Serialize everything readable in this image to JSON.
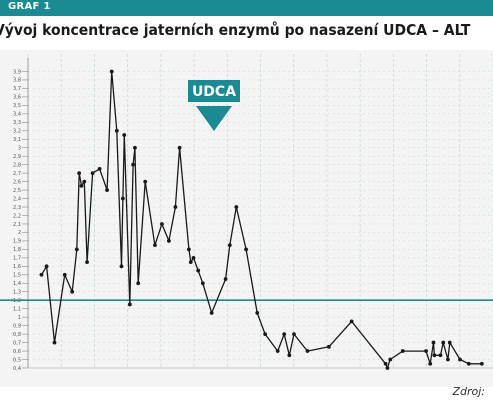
{
  "header": {
    "label": "GRAF 1"
  },
  "title": "Vývoj koncentrace jaterních enzymů po nasazení UDCA – ALT",
  "source": "Zdroj:",
  "colors": {
    "accent": "#1b8a93",
    "line": "#1a1a1a",
    "grid": "#c9d9d9",
    "plot_background": "#f4f4f4"
  },
  "chart_data": {
    "type": "line",
    "title": "Vývoj koncentrace jaterních enzymů po nasazení UDCA – ALT",
    "xlabel": "",
    "ylabel": "",
    "ylim": [
      0.4,
      4.0
    ],
    "xlim": [
      0,
      100
    ],
    "grid": true,
    "y_ticks": [
      "0,4",
      "0,5",
      "0,6",
      "0,7",
      "0,8",
      "0,9",
      "1",
      "1,1",
      "1,2",
      "1,3",
      "1,4",
      "1,5",
      "1,6",
      "1,7",
      "1,8",
      "1,9",
      "2",
      "2,1",
      "2,2",
      "2,3",
      "2,4",
      "2,5",
      "2,6",
      "2,7",
      "2,8",
      "2,9",
      "3",
      "3,1",
      "3,2",
      "3,3",
      "3,4",
      "3,5",
      "3,6",
      "3,7",
      "3,8",
      "3,9"
    ],
    "reference_line": {
      "y": 1.2
    },
    "annotation": {
      "label": "UDCA",
      "x": 40
    },
    "series": [
      {
        "x": [
          2.9,
          4.0,
          5.7,
          7.9,
          9.5,
          10.5,
          11.0,
          11.5,
          12.1,
          12.7,
          13.9,
          15.4,
          17.0,
          18.0,
          19.1,
          20.1,
          20.4,
          20.7,
          21.9,
          22.6,
          23.0,
          23.7,
          25.2,
          27.3,
          28.8,
          30.3,
          31.7,
          32.6,
          34.6,
          35.0,
          35.6,
          36.6,
          37.6,
          39.5,
          42.5,
          43.4,
          44.8,
          46.9,
          49.3,
          51.0,
          53.7,
          55.1,
          56.2,
          57.2,
          60.1,
          64.7,
          69.6,
          76.9,
          77.3,
          77.9,
          80.6,
          85.6,
          86.5,
          87.2,
          87.4,
          88.7,
          89.3,
          90.3,
          90.7,
          92.9,
          94.8,
          97.6
        ],
        "values": [
          1.5,
          1.6,
          0.7,
          1.5,
          1.3,
          1.8,
          2.7,
          2.55,
          2.6,
          1.65,
          2.7,
          2.75,
          2.5,
          3.9,
          3.2,
          1.6,
          2.4,
          3.15,
          1.15,
          2.8,
          3.0,
          1.4,
          2.6,
          1.85,
          2.1,
          1.9,
          2.3,
          3.0,
          1.8,
          1.65,
          1.7,
          1.55,
          1.4,
          1.05,
          1.45,
          1.85,
          2.3,
          1.8,
          1.05,
          0.8,
          0.6,
          0.8,
          0.55,
          0.8,
          0.6,
          0.65,
          0.95,
          0.45,
          0.4,
          0.5,
          0.6,
          0.6,
          0.45,
          0.7,
          0.55,
          0.55,
          0.7,
          0.5,
          0.7,
          0.5,
          0.45,
          0.45
        ]
      }
    ]
  }
}
